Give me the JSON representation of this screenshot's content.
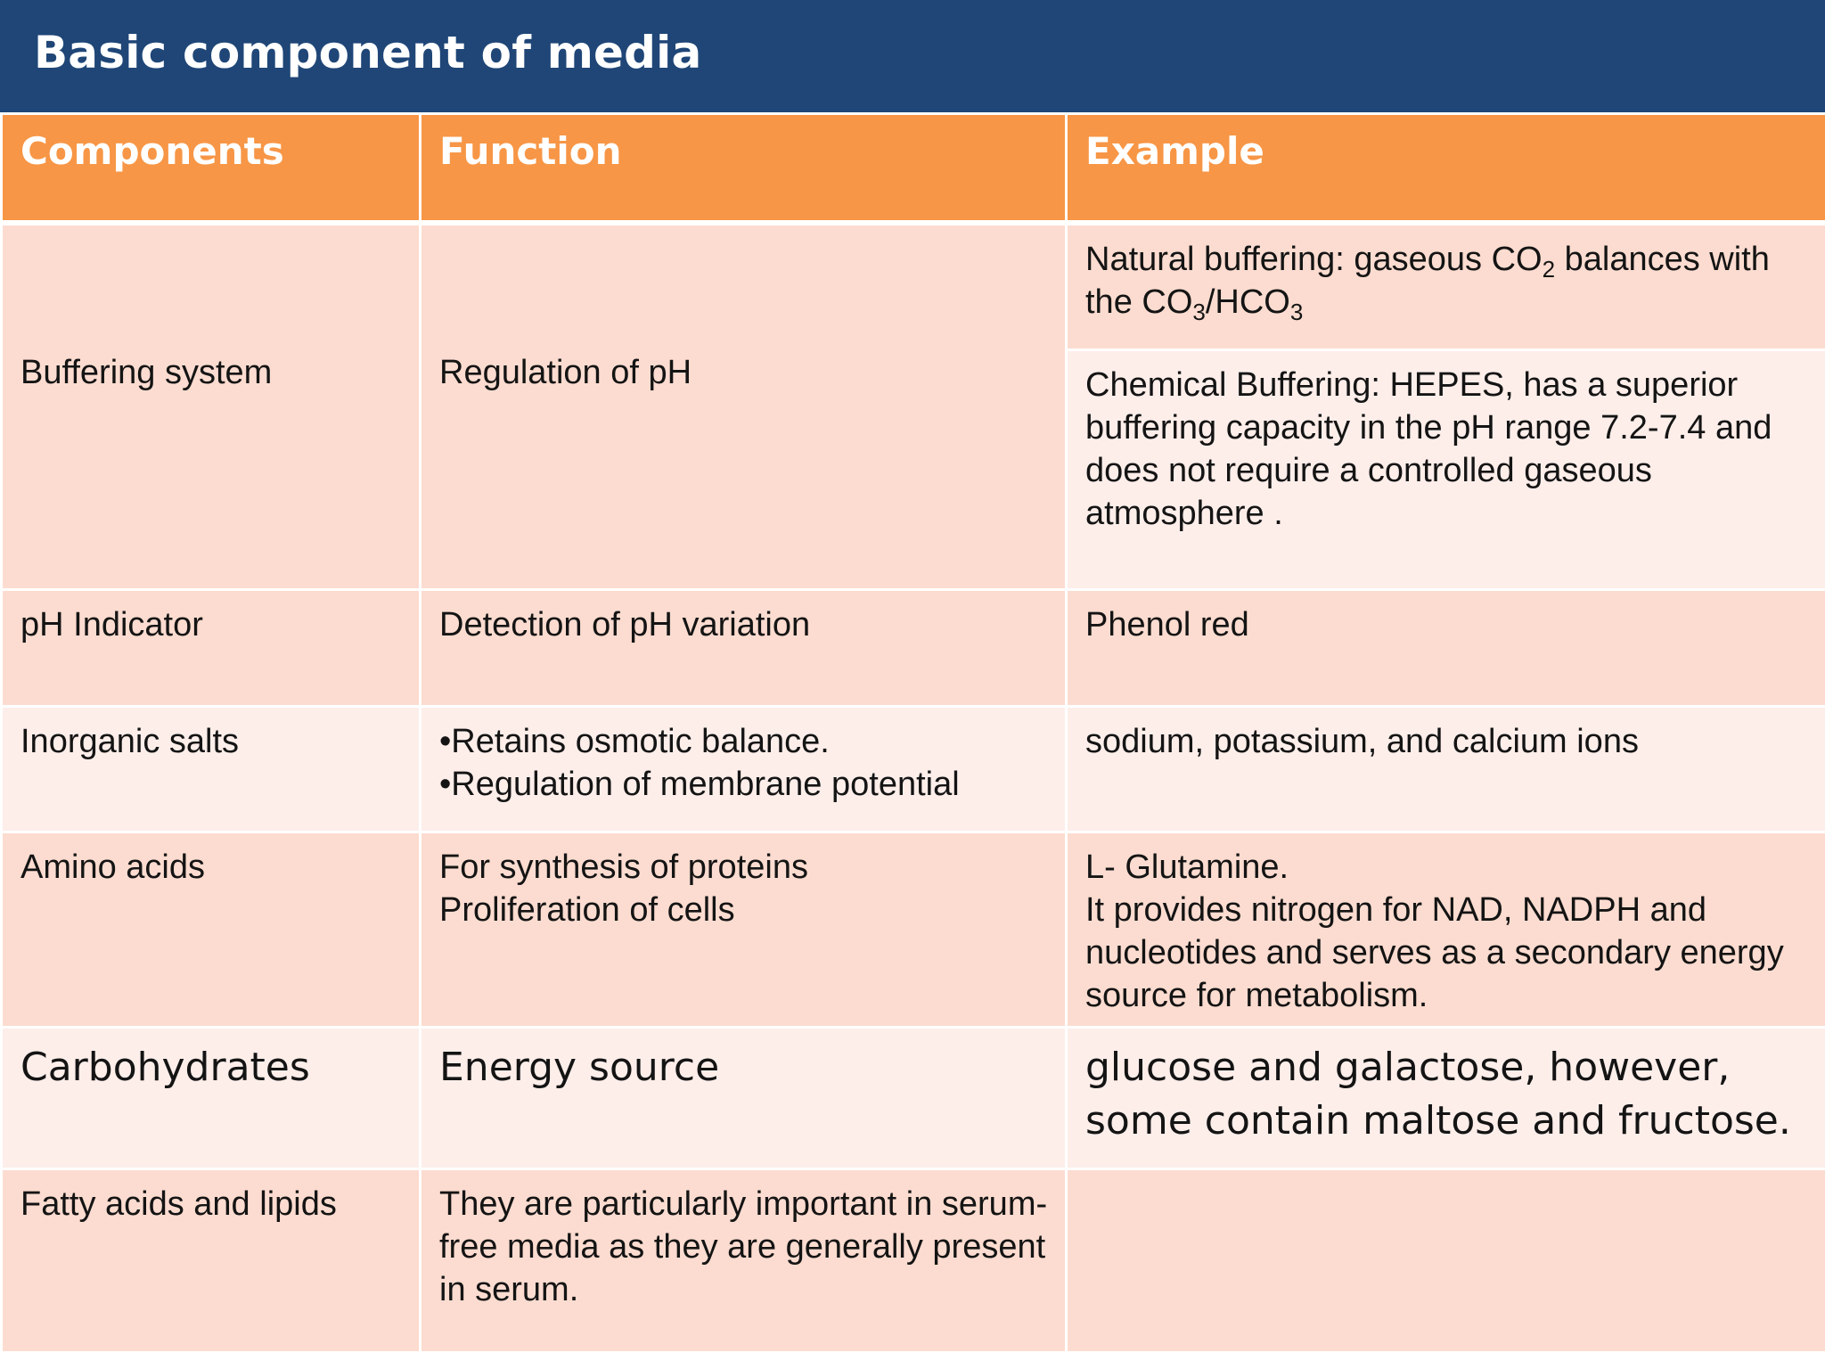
{
  "title": "Basic component of media",
  "headers": {
    "components": "Components",
    "function": "Function",
    "example": "Example"
  },
  "rows": {
    "buffering": {
      "component": "Buffering system",
      "function": "Regulation of pH",
      "example_natural_a": "Natural buffering: gaseous CO",
      "example_natural_sub1": "2",
      "example_natural_b": " balances with the CO",
      "example_natural_sub2": "3",
      "example_natural_c": "/HCO",
      "example_natural_sub3": "3",
      "example_chemical": "Chemical Buffering: HEPES, has a superior buffering capacity in the pH range 7.2-7.4 and does not require a controlled gaseous atmosphere ."
    },
    "ph_indicator": {
      "component": "pH Indicator",
      "function": "Detection of pH variation",
      "example": "Phenol red"
    },
    "inorganic_salts": {
      "component": "Inorganic salts",
      "function_line1": "•Retains osmotic balance.",
      "function_line2": "•Regulation of membrane potential",
      "example": "sodium, potassium, and calcium ions"
    },
    "amino_acids": {
      "component": "Amino acids",
      "function_line1": "For synthesis of proteins",
      "function_line2": "Proliferation of cells",
      "example_line1": "L- Glutamine.",
      "example_line2": "It provides nitrogen for NAD, NADPH and nucleotides and serves as a secondary energy source for metabolism."
    },
    "carbohydrates": {
      "component": "Carbohydrates",
      "function": "Energy source",
      "example": "glucose and galactose, however, some contain maltose and fructose."
    },
    "fatty_acids": {
      "component": "Fatty acids and lipids",
      "function": "They are particularly important in serum-free media as they are generally present in serum.",
      "example": ""
    }
  },
  "colors": {
    "title_bar": "#1f4677",
    "header_row": "#f79646",
    "row_dark": "#fcdcd0",
    "row_light": "#fdeeea"
  }
}
